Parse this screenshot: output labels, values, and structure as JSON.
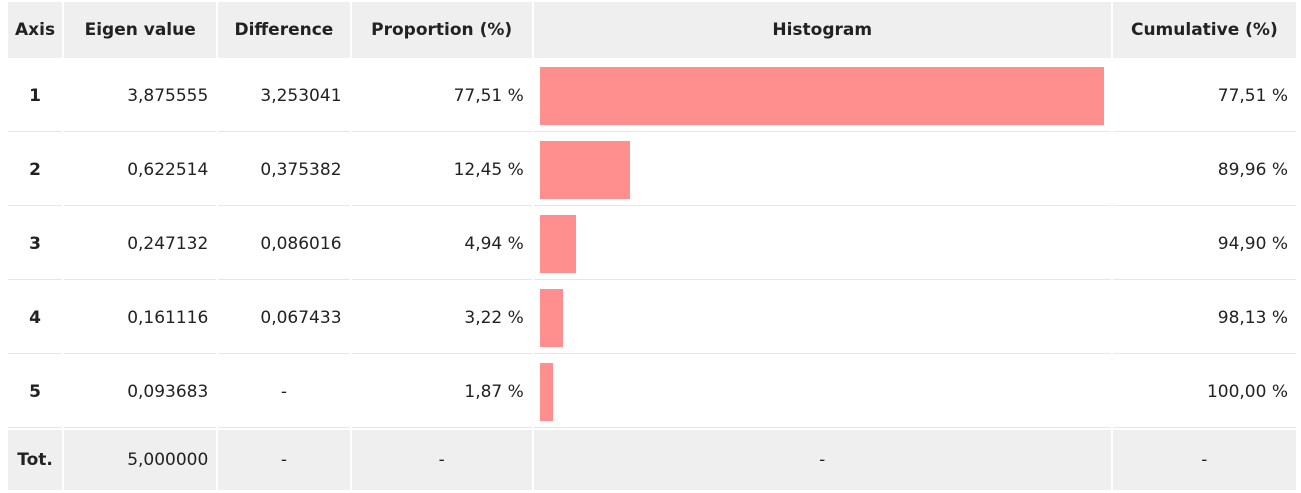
{
  "table": {
    "headers": [
      "Axis",
      "Eigen value",
      "Difference",
      "Proportion (%)",
      "Histogram",
      "Cumulative (%)"
    ],
    "rows": [
      {
        "axis": "1",
        "eigen": "3,875555",
        "difference": "3,253041",
        "proportion": 77.51,
        "proportion_label": "77,51 %",
        "cumulative": "77,51 %"
      },
      {
        "axis": "2",
        "eigen": "0,622514",
        "difference": "0,375382",
        "proportion": 12.45,
        "proportion_label": "12,45 %",
        "cumulative": "89,96 %"
      },
      {
        "axis": "3",
        "eigen": "0,247132",
        "difference": "0,086016",
        "proportion": 4.94,
        "proportion_label": "4,94 %",
        "cumulative": "94,90 %"
      },
      {
        "axis": "4",
        "eigen": "0,161116",
        "difference": "0,067433",
        "proportion": 3.22,
        "proportion_label": "3,22 %",
        "cumulative": "98,13 %"
      },
      {
        "axis": "5",
        "eigen": "0,093683",
        "difference": "-",
        "proportion": 1.87,
        "proportion_label": "1,87 %",
        "cumulative": "100,00 %"
      }
    ],
    "total": {
      "axis": "Tot.",
      "eigen": "5,000000",
      "difference": "-",
      "proportion": "-",
      "histogram": "-",
      "cumulative": "-"
    },
    "bar_color": "#ff8f8f"
  }
}
